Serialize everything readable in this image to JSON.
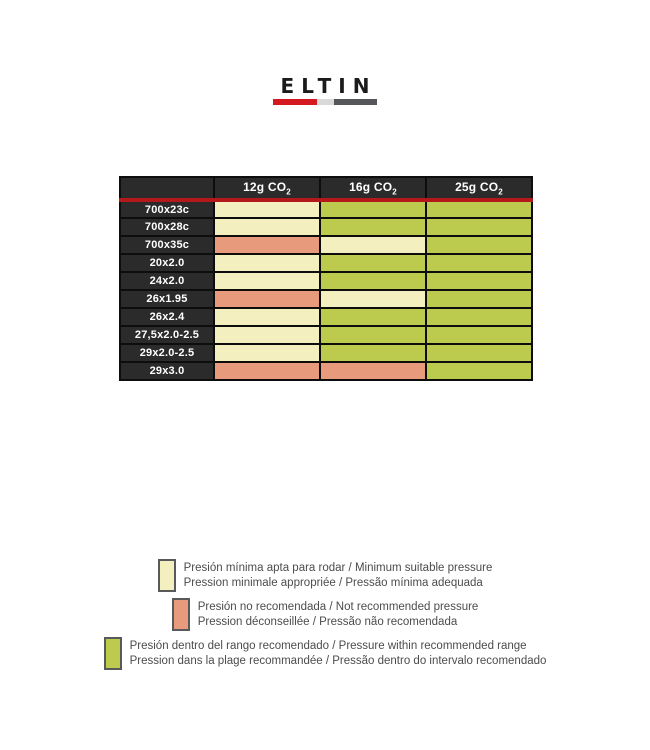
{
  "logo": {
    "brand": "ELTIN",
    "bar_colors": [
      "#d41920",
      "#d9d9d9",
      "#55565a"
    ]
  },
  "table": {
    "columns": [
      {
        "label": "12g CO",
        "sub": "2"
      },
      {
        "label": "16g CO",
        "sub": "2"
      },
      {
        "label": "25g CO",
        "sub": "2"
      }
    ],
    "rows": [
      {
        "label": "700x23c",
        "cells": [
          "minimum",
          "recommended",
          "recommended"
        ]
      },
      {
        "label": "700x28c",
        "cells": [
          "minimum",
          "recommended",
          "recommended"
        ]
      },
      {
        "label": "700x35c",
        "cells": [
          "not-recommended",
          "minimum",
          "recommended"
        ]
      },
      {
        "label": "20x2.0",
        "cells": [
          "minimum",
          "recommended",
          "recommended"
        ]
      },
      {
        "label": "24x2.0",
        "cells": [
          "minimum",
          "recommended",
          "recommended"
        ]
      },
      {
        "label": "26x1.95",
        "cells": [
          "not-recommended",
          "minimum",
          "recommended"
        ]
      },
      {
        "label": "26x2.4",
        "cells": [
          "minimum",
          "recommended",
          "recommended"
        ]
      },
      {
        "label": "27,5x2.0-2.5",
        "cells": [
          "minimum",
          "recommended",
          "recommended"
        ]
      },
      {
        "label": "29x2.0-2.5",
        "cells": [
          "minimum",
          "recommended",
          "recommended"
        ]
      },
      {
        "label": "29x3.0",
        "cells": [
          "not-recommended",
          "not-recommended",
          "recommended"
        ]
      }
    ]
  },
  "legend_colors": {
    "minimum": "#f3efbf",
    "not-recommended": "#e79b7c",
    "recommended": "#bccb4e"
  },
  "legend": [
    {
      "key": "minimum",
      "color": "#f3efbf",
      "line1": "Presión mínima apta para rodar / Minimum suitable pressure",
      "line2": "Pression minimale appropriée / Pressão mínima adequada"
    },
    {
      "key": "not-recommended",
      "color": "#e79b7c",
      "line1": "Presión no recomendada / Not recommended pressure",
      "line2": "Pression déconseillée / Pressão não recomendada"
    },
    {
      "key": "recommended",
      "color": "#bccb4e",
      "line1": "Presión dentro del rango recomendado / Pressure within recommended range",
      "line2": "Pression dans la plage recommandée / Pressão dentro do intervalo recomendado"
    }
  ],
  "theme": {
    "header_bg": "#2b2b2b",
    "header_text": "#ffffff",
    "divider_red": "#b5181b",
    "grid_border": "#0d0d0d",
    "legend_text": "#4c4c4c"
  }
}
